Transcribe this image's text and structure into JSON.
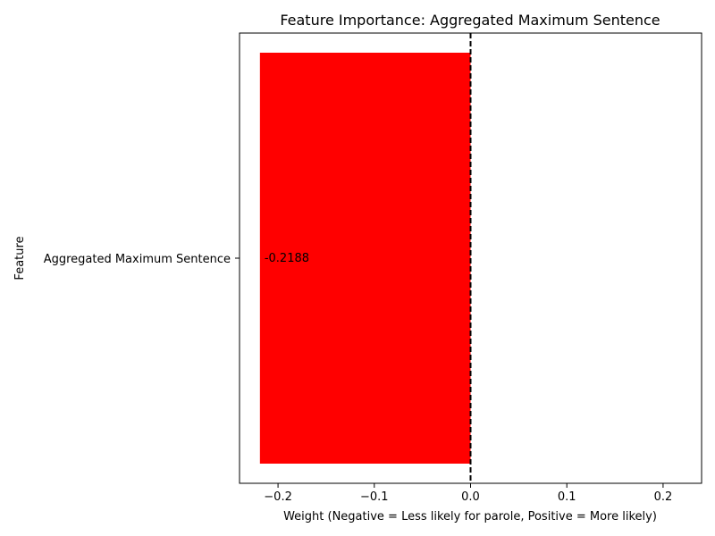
{
  "chart_data": {
    "type": "bar",
    "orientation": "horizontal",
    "title": "Feature Importance: Aggregated Maximum Sentence",
    "xlabel": "Weight (Negative = Less likely for parole, Positive = More likely)",
    "ylabel": "Feature",
    "categories": [
      "Aggregated Maximum Sentence"
    ],
    "values": [
      -0.2188
    ],
    "value_labels": [
      "-0.2188"
    ],
    "xlim": [
      -0.24,
      0.24
    ],
    "xticks": [
      -0.2,
      -0.1,
      0.0,
      0.1,
      0.2
    ],
    "xtick_labels": [
      "−0.2",
      "−0.1",
      "0.0",
      "0.1",
      "0.2"
    ],
    "bar_color": "#ff0000",
    "reference_line": {
      "x": 0,
      "style": "dashed",
      "color": "#000000"
    },
    "grid": false,
    "legend": "none"
  }
}
